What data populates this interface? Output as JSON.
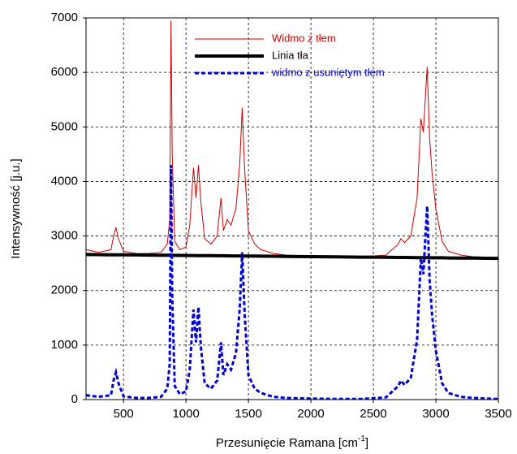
{
  "chart_data": {
    "type": "line",
    "y_label": "Intensywność [j.u.]",
    "x_label": "Przesunięcie Ramana [cm",
    "x_label_sup": "-1",
    "x_label_end": "]",
    "x": [
      200,
      300,
      400,
      420,
      440,
      460,
      500,
      600,
      700,
      800,
      850,
      870,
      880,
      890,
      910,
      950,
      1000,
      1030,
      1060,
      1080,
      1100,
      1120,
      1150,
      1200,
      1250,
      1280,
      1300,
      1330,
      1360,
      1400,
      1430,
      1450,
      1470,
      1500,
      1550,
      1600,
      1700,
      1800,
      2000,
      2200,
      2400,
      2600,
      2700,
      2720,
      2750,
      2800,
      2850,
      2880,
      2900,
      2930,
      2950,
      2970,
      3000,
      3050,
      3100,
      3200,
      3300,
      3400,
      3500
    ],
    "series": [
      {
        "name": "Widmo z tłem",
        "color": "#cc0000",
        "width": 1,
        "dashed": false,
        "values": [
          2750,
          2700,
          2750,
          3000,
          3150,
          2950,
          2720,
          2680,
          2680,
          2700,
          2850,
          3300,
          6950,
          4500,
          2900,
          2750,
          2800,
          3200,
          4250,
          3700,
          4300,
          3600,
          2950,
          2850,
          3000,
          3700,
          3100,
          3300,
          3200,
          3500,
          4300,
          5350,
          4200,
          3100,
          2850,
          2750,
          2680,
          2650,
          2630,
          2620,
          2620,
          2650,
          2850,
          2950,
          2880,
          3000,
          3700,
          5150,
          4900,
          6100,
          4800,
          4150,
          3500,
          2900,
          2720,
          2650,
          2620,
          2610,
          2600
        ]
      },
      {
        "name": "Linia tła",
        "color": "#000000",
        "width": 4,
        "dashed": false,
        "values": [
          2660,
          2658,
          2656,
          2655,
          2655,
          2654,
          2654,
          2652,
          2649,
          2647,
          2646,
          2646,
          2646,
          2645,
          2645,
          2644,
          2643,
          2642,
          2642,
          2641,
          2641,
          2640,
          2640,
          2639,
          2638,
          2637,
          2637,
          2636,
          2635,
          2635,
          2634,
          2633,
          2633,
          2632,
          2631,
          2630,
          2628,
          2626,
          2622,
          2618,
          2613,
          2609,
          2607,
          2607,
          2606,
          2605,
          2604,
          2603,
          2603,
          2602,
          2602,
          2601,
          2601,
          2600,
          2598,
          2596,
          2594,
          2592,
          2590
        ]
      },
      {
        "name": "widmo z usuniętym tłem",
        "color": "#0000cc",
        "width": 3,
        "dashed": true,
        "values": [
          80,
          50,
          80,
          350,
          500,
          300,
          60,
          30,
          30,
          50,
          200,
          650,
          4300,
          1900,
          250,
          100,
          150,
          550,
          1650,
          1050,
          1700,
          950,
          300,
          200,
          350,
          1050,
          450,
          650,
          550,
          850,
          1650,
          2700,
          1550,
          450,
          200,
          120,
          50,
          30,
          20,
          10,
          10,
          40,
          250,
          350,
          270,
          400,
          1100,
          2600,
          2300,
          3550,
          2200,
          1550,
          900,
          300,
          120,
          50,
          30,
          20,
          10
        ]
      }
    ],
    "xlim": [
      200,
      3500
    ],
    "xticks": [
      500,
      1000,
      1500,
      2000,
      2500,
      3000,
      3500
    ],
    "ylim": [
      0,
      7000
    ],
    "yticks": [
      0,
      1000,
      2000,
      3000,
      4000,
      5000,
      6000,
      7000
    ],
    "grid": true
  }
}
